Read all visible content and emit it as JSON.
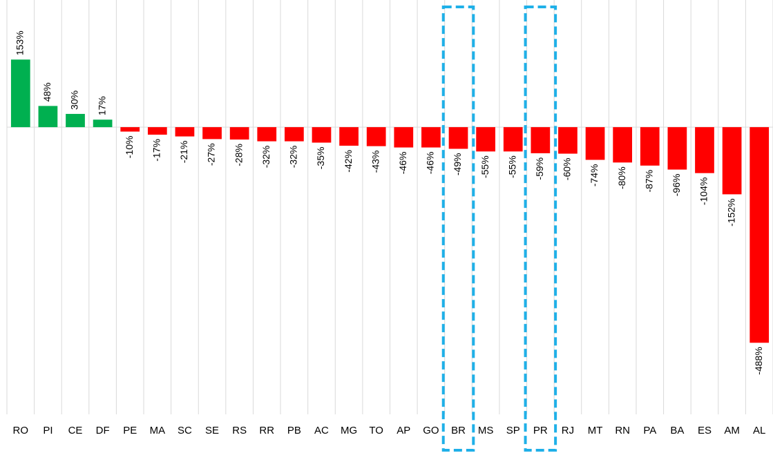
{
  "chart_data": {
    "type": "bar",
    "categories": [
      "RO",
      "PI",
      "CE",
      "DF",
      "PE",
      "MA",
      "SC",
      "SE",
      "RS",
      "RR",
      "PB",
      "AC",
      "MG",
      "TO",
      "AP",
      "GO",
      "BR",
      "MS",
      "SP",
      "PR",
      "RJ",
      "MT",
      "RN",
      "PA",
      "BA",
      "ES",
      "AM",
      "AL"
    ],
    "values": [
      153,
      48,
      30,
      17,
      -10,
      -17,
      -21,
      -27,
      -28,
      -32,
      -32,
      -35,
      -42,
      -43,
      -46,
      -46,
      -49,
      -55,
      -55,
      -59,
      -60,
      -74,
      -80,
      -87,
      -96,
      -104,
      -152,
      -488
    ],
    "value_labels": [
      "153%",
      "48%",
      "30%",
      "17%",
      "-10%",
      "-17%",
      "-21%",
      "-27%",
      "-28%",
      "-32%",
      "-32%",
      "-35%",
      "-42%",
      "-43%",
      "-46%",
      "-46%",
      "-49%",
      "-55%",
      "-55%",
      "-59%",
      "-60%",
      "-74%",
      "-80%",
      "-87%",
      "-96%",
      "-104%",
      "-152%",
      "-488%"
    ],
    "positive_color": "#00b050",
    "negative_color": "#ff0000",
    "ylim": [
      -650,
      280
    ],
    "highlighted": [
      "BR",
      "PR"
    ],
    "highlight_color": "#1fb0e8"
  }
}
